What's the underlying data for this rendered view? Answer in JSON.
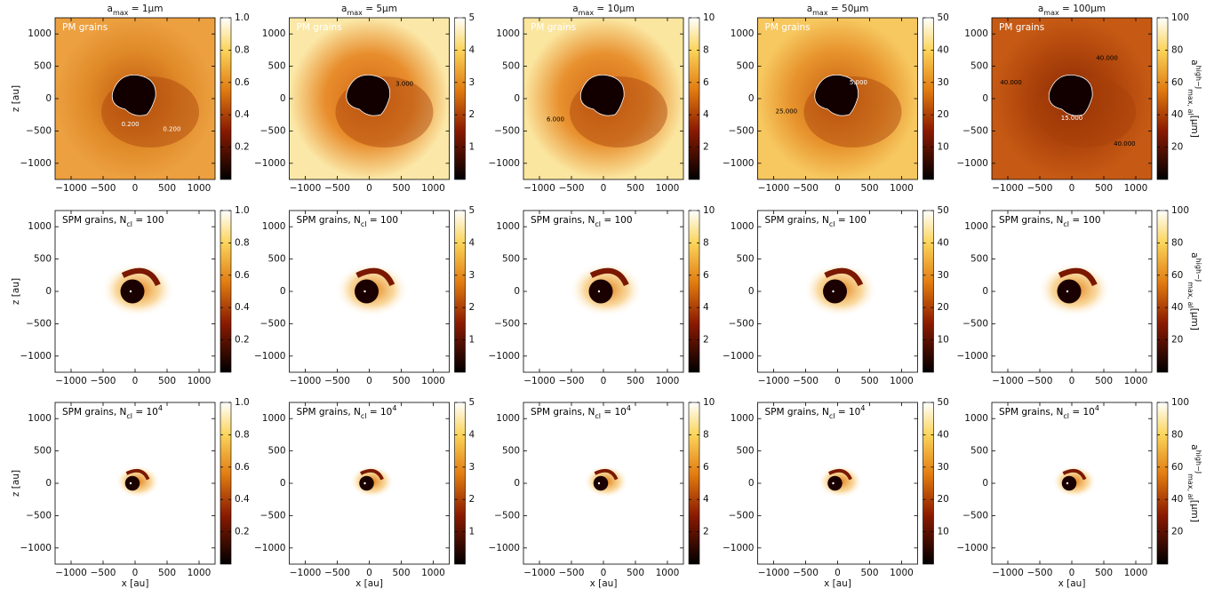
{
  "chart_data": {
    "type": "heatmap",
    "xlabel": "x [au]",
    "ylabel": "z [au]",
    "xlim": [
      -1250,
      1250
    ],
    "ylim": [
      -1250,
      1250
    ],
    "xticks": [
      {
        "value": -1000,
        "label": "−1000"
      },
      {
        "value": -500,
        "label": "−500"
      },
      0,
      500,
      1000
    ],
    "yticks": [
      {
        "value": -1000,
        "label": "−1000"
      },
      {
        "value": -500,
        "label": "−500"
      },
      0,
      500,
      1000
    ],
    "colorbar_label": {
      "symbol": "a",
      "sup": "high−J",
      "sub": "max, al",
      "unit": "[μm]"
    },
    "columns": [
      {
        "title": {
          "symbol": "a",
          "sub": "max",
          "text": " = 1μm"
        },
        "clim": [
          0,
          1
        ],
        "cticks": [
          0.2,
          0.4,
          0.6,
          0.8,
          {
            "value": 1,
            "label": "1.0"
          }
        ]
      },
      {
        "title": {
          "symbol": "a",
          "sub": "max",
          "text": " = 5μm"
        },
        "clim": [
          0,
          5
        ],
        "cticks": [
          1,
          2,
          3,
          4,
          5
        ]
      },
      {
        "title": {
          "symbol": "a",
          "sub": "max",
          "text": " = 10μm"
        },
        "clim": [
          0,
          10
        ],
        "cticks": [
          2,
          4,
          6,
          8,
          10
        ]
      },
      {
        "title": {
          "symbol": "a",
          "sub": "max",
          "text": " = 50μm"
        },
        "clim": [
          0,
          50
        ],
        "cticks": [
          10,
          20,
          30,
          40,
          50
        ]
      },
      {
        "title": {
          "symbol": "a",
          "sub": "max",
          "text": " = 100μm"
        },
        "clim": [
          0,
          100
        ],
        "cticks": [
          20,
          40,
          60,
          80,
          100
        ]
      }
    ],
    "rows": [
      {
        "label": {
          "text": "PM grains"
        }
      },
      {
        "label": {
          "text": "SPM grains, N",
          "sub": "cl",
          "rest": " = 100"
        }
      },
      {
        "label": {
          "text": "SPM grains, N",
          "sub": "cl",
          "rest": " = 10",
          "sup": "4"
        }
      }
    ],
    "contour_labels": [
      [
        "0.200",
        "0.200"
      ],
      [
        "3.000"
      ],
      [
        "6.000"
      ],
      [
        "25.000",
        "5.000"
      ],
      [
        "40.000",
        "40.000",
        "15.000",
        "40.000"
      ]
    ]
  }
}
